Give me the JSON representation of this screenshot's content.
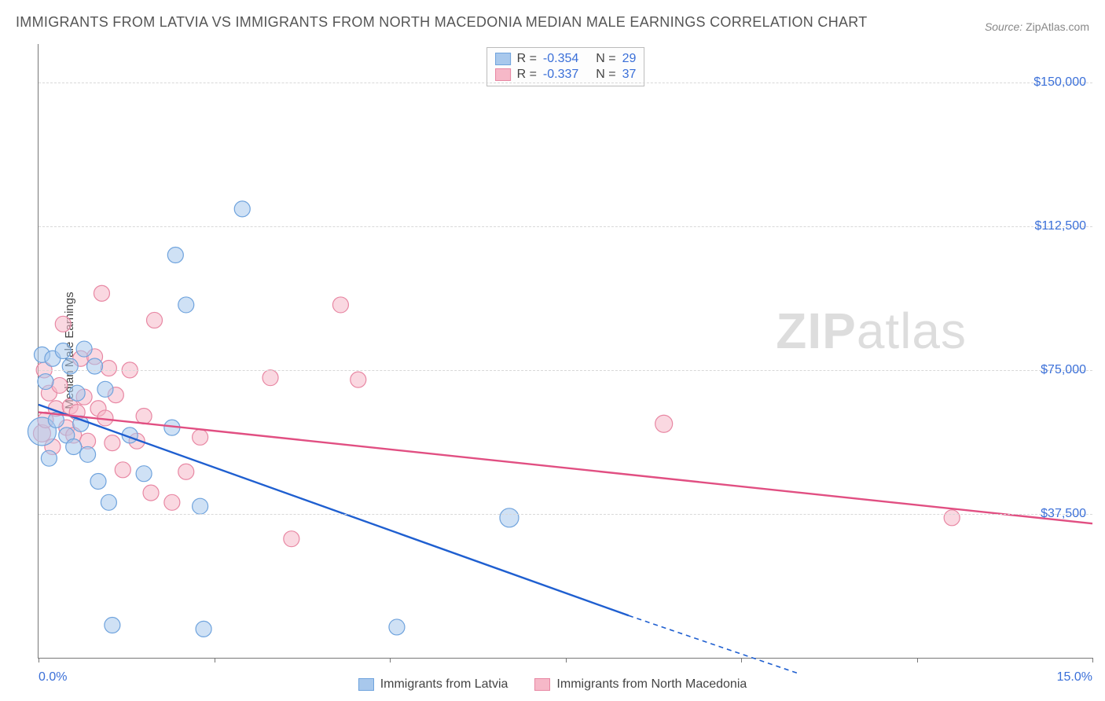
{
  "title": "IMMIGRANTS FROM LATVIA VS IMMIGRANTS FROM NORTH MACEDONIA MEDIAN MALE EARNINGS CORRELATION CHART",
  "source_label": "Source:",
  "source_value": "ZipAtlas.com",
  "y_axis_label": "Median Male Earnings",
  "watermark_a": "ZIP",
  "watermark_b": "atlas",
  "plot": {
    "xmin": 0.0,
    "xmax": 15.0,
    "ymin": 0,
    "ymax": 160000,
    "y_gridlines": [
      37500,
      75000,
      112500,
      150000
    ],
    "y_tick_labels": [
      "$37,500",
      "$75,000",
      "$112,500",
      "$150,000"
    ],
    "x_ticks": [
      0.0,
      2.5,
      5.0,
      7.5,
      10.0,
      12.5,
      15.0
    ],
    "x_tick_labels_visible": {
      "0.0": "0.0%",
      "15.0": "15.0%"
    },
    "grid_color": "#d8d8d8",
    "axis_color": "#777777",
    "tick_label_color": "#3a6fd8"
  },
  "series": {
    "latvia": {
      "label": "Immigrants from Latvia",
      "fill": "#a8c8ec",
      "stroke": "#6fa3dd",
      "fill_opacity": 0.55,
      "line_color": "#1f5fd0",
      "marker_radius_base": 10,
      "R_label": "R =",
      "R_value": "-0.354",
      "N_label": "N =",
      "N_value": "29",
      "trend": {
        "x1": 0.0,
        "y1": 66000,
        "x2": 8.4,
        "y2": 11000,
        "dash_to_x": 10.8,
        "dash_to_y": -4000
      },
      "points": [
        {
          "x": 0.05,
          "y": 79000,
          "r": 10
        },
        {
          "x": 0.05,
          "y": 59000,
          "r": 18
        },
        {
          "x": 0.1,
          "y": 72000,
          "r": 10
        },
        {
          "x": 0.15,
          "y": 52000,
          "r": 10
        },
        {
          "x": 0.2,
          "y": 78000,
          "r": 10
        },
        {
          "x": 0.25,
          "y": 62000,
          "r": 10
        },
        {
          "x": 0.35,
          "y": 80000,
          "r": 10
        },
        {
          "x": 0.4,
          "y": 58000,
          "r": 10
        },
        {
          "x": 0.45,
          "y": 76000,
          "r": 10
        },
        {
          "x": 0.5,
          "y": 55000,
          "r": 10
        },
        {
          "x": 0.55,
          "y": 69000,
          "r": 10
        },
        {
          "x": 0.6,
          "y": 61000,
          "r": 10
        },
        {
          "x": 0.65,
          "y": 80500,
          "r": 10
        },
        {
          "x": 0.7,
          "y": 53000,
          "r": 10
        },
        {
          "x": 0.8,
          "y": 76000,
          "r": 10
        },
        {
          "x": 0.85,
          "y": 46000,
          "r": 10
        },
        {
          "x": 0.95,
          "y": 70000,
          "r": 10
        },
        {
          "x": 1.0,
          "y": 40500,
          "r": 10
        },
        {
          "x": 1.05,
          "y": 8500,
          "r": 10
        },
        {
          "x": 1.3,
          "y": 58000,
          "r": 10
        },
        {
          "x": 1.5,
          "y": 48000,
          "r": 10
        },
        {
          "x": 1.9,
          "y": 60000,
          "r": 10
        },
        {
          "x": 1.95,
          "y": 105000,
          "r": 10
        },
        {
          "x": 2.1,
          "y": 92000,
          "r": 10
        },
        {
          "x": 2.3,
          "y": 39500,
          "r": 10
        },
        {
          "x": 2.35,
          "y": 7500,
          "r": 10
        },
        {
          "x": 2.9,
          "y": 117000,
          "r": 10
        },
        {
          "x": 5.1,
          "y": 8000,
          "r": 10
        },
        {
          "x": 6.7,
          "y": 36500,
          "r": 12
        }
      ]
    },
    "nmk": {
      "label": "Immigrants from North Macedonia",
      "fill": "#f6b8c8",
      "stroke": "#e887a3",
      "fill_opacity": 0.55,
      "line_color": "#e14f82",
      "marker_radius_base": 10,
      "R_label": "R =",
      "R_value": "-0.337",
      "N_label": "N =",
      "N_value": "37",
      "trend": {
        "x1": 0.0,
        "y1": 64000,
        "x2": 15.0,
        "y2": 35000
      },
      "points": [
        {
          "x": 0.05,
          "y": 58500,
          "r": 11
        },
        {
          "x": 0.08,
          "y": 75000,
          "r": 10
        },
        {
          "x": 0.1,
          "y": 62000,
          "r": 10
        },
        {
          "x": 0.15,
          "y": 69000,
          "r": 10
        },
        {
          "x": 0.2,
          "y": 55000,
          "r": 10
        },
        {
          "x": 0.25,
          "y": 65000,
          "r": 10
        },
        {
          "x": 0.3,
          "y": 71000,
          "r": 10
        },
        {
          "x": 0.35,
          "y": 87000,
          "r": 10
        },
        {
          "x": 0.4,
          "y": 60000,
          "r": 10
        },
        {
          "x": 0.45,
          "y": 65500,
          "r": 10
        },
        {
          "x": 0.5,
          "y": 58000,
          "r": 10
        },
        {
          "x": 0.55,
          "y": 64000,
          "r": 10
        },
        {
          "x": 0.6,
          "y": 78000,
          "r": 10
        },
        {
          "x": 0.65,
          "y": 68000,
          "r": 10
        },
        {
          "x": 0.7,
          "y": 56500,
          "r": 10
        },
        {
          "x": 0.8,
          "y": 78500,
          "r": 10
        },
        {
          "x": 0.85,
          "y": 65000,
          "r": 10
        },
        {
          "x": 0.9,
          "y": 95000,
          "r": 10
        },
        {
          "x": 0.95,
          "y": 62500,
          "r": 10
        },
        {
          "x": 1.0,
          "y": 75500,
          "r": 10
        },
        {
          "x": 1.05,
          "y": 56000,
          "r": 10
        },
        {
          "x": 1.1,
          "y": 68500,
          "r": 10
        },
        {
          "x": 1.2,
          "y": 49000,
          "r": 10
        },
        {
          "x": 1.3,
          "y": 75000,
          "r": 10
        },
        {
          "x": 1.4,
          "y": 56500,
          "r": 10
        },
        {
          "x": 1.5,
          "y": 63000,
          "r": 10
        },
        {
          "x": 1.6,
          "y": 43000,
          "r": 10
        },
        {
          "x": 1.65,
          "y": 88000,
          "r": 10
        },
        {
          "x": 1.9,
          "y": 40500,
          "r": 10
        },
        {
          "x": 2.1,
          "y": 48500,
          "r": 10
        },
        {
          "x": 2.3,
          "y": 57500,
          "r": 10
        },
        {
          "x": 3.3,
          "y": 73000,
          "r": 10
        },
        {
          "x": 3.6,
          "y": 31000,
          "r": 10
        },
        {
          "x": 4.3,
          "y": 92000,
          "r": 10
        },
        {
          "x": 4.55,
          "y": 72500,
          "r": 10
        },
        {
          "x": 8.9,
          "y": 61000,
          "r": 11
        },
        {
          "x": 13.0,
          "y": 36500,
          "r": 10
        }
      ]
    }
  },
  "legend_bottom": {
    "items": [
      {
        "key": "latvia"
      },
      {
        "key": "nmk"
      }
    ]
  }
}
